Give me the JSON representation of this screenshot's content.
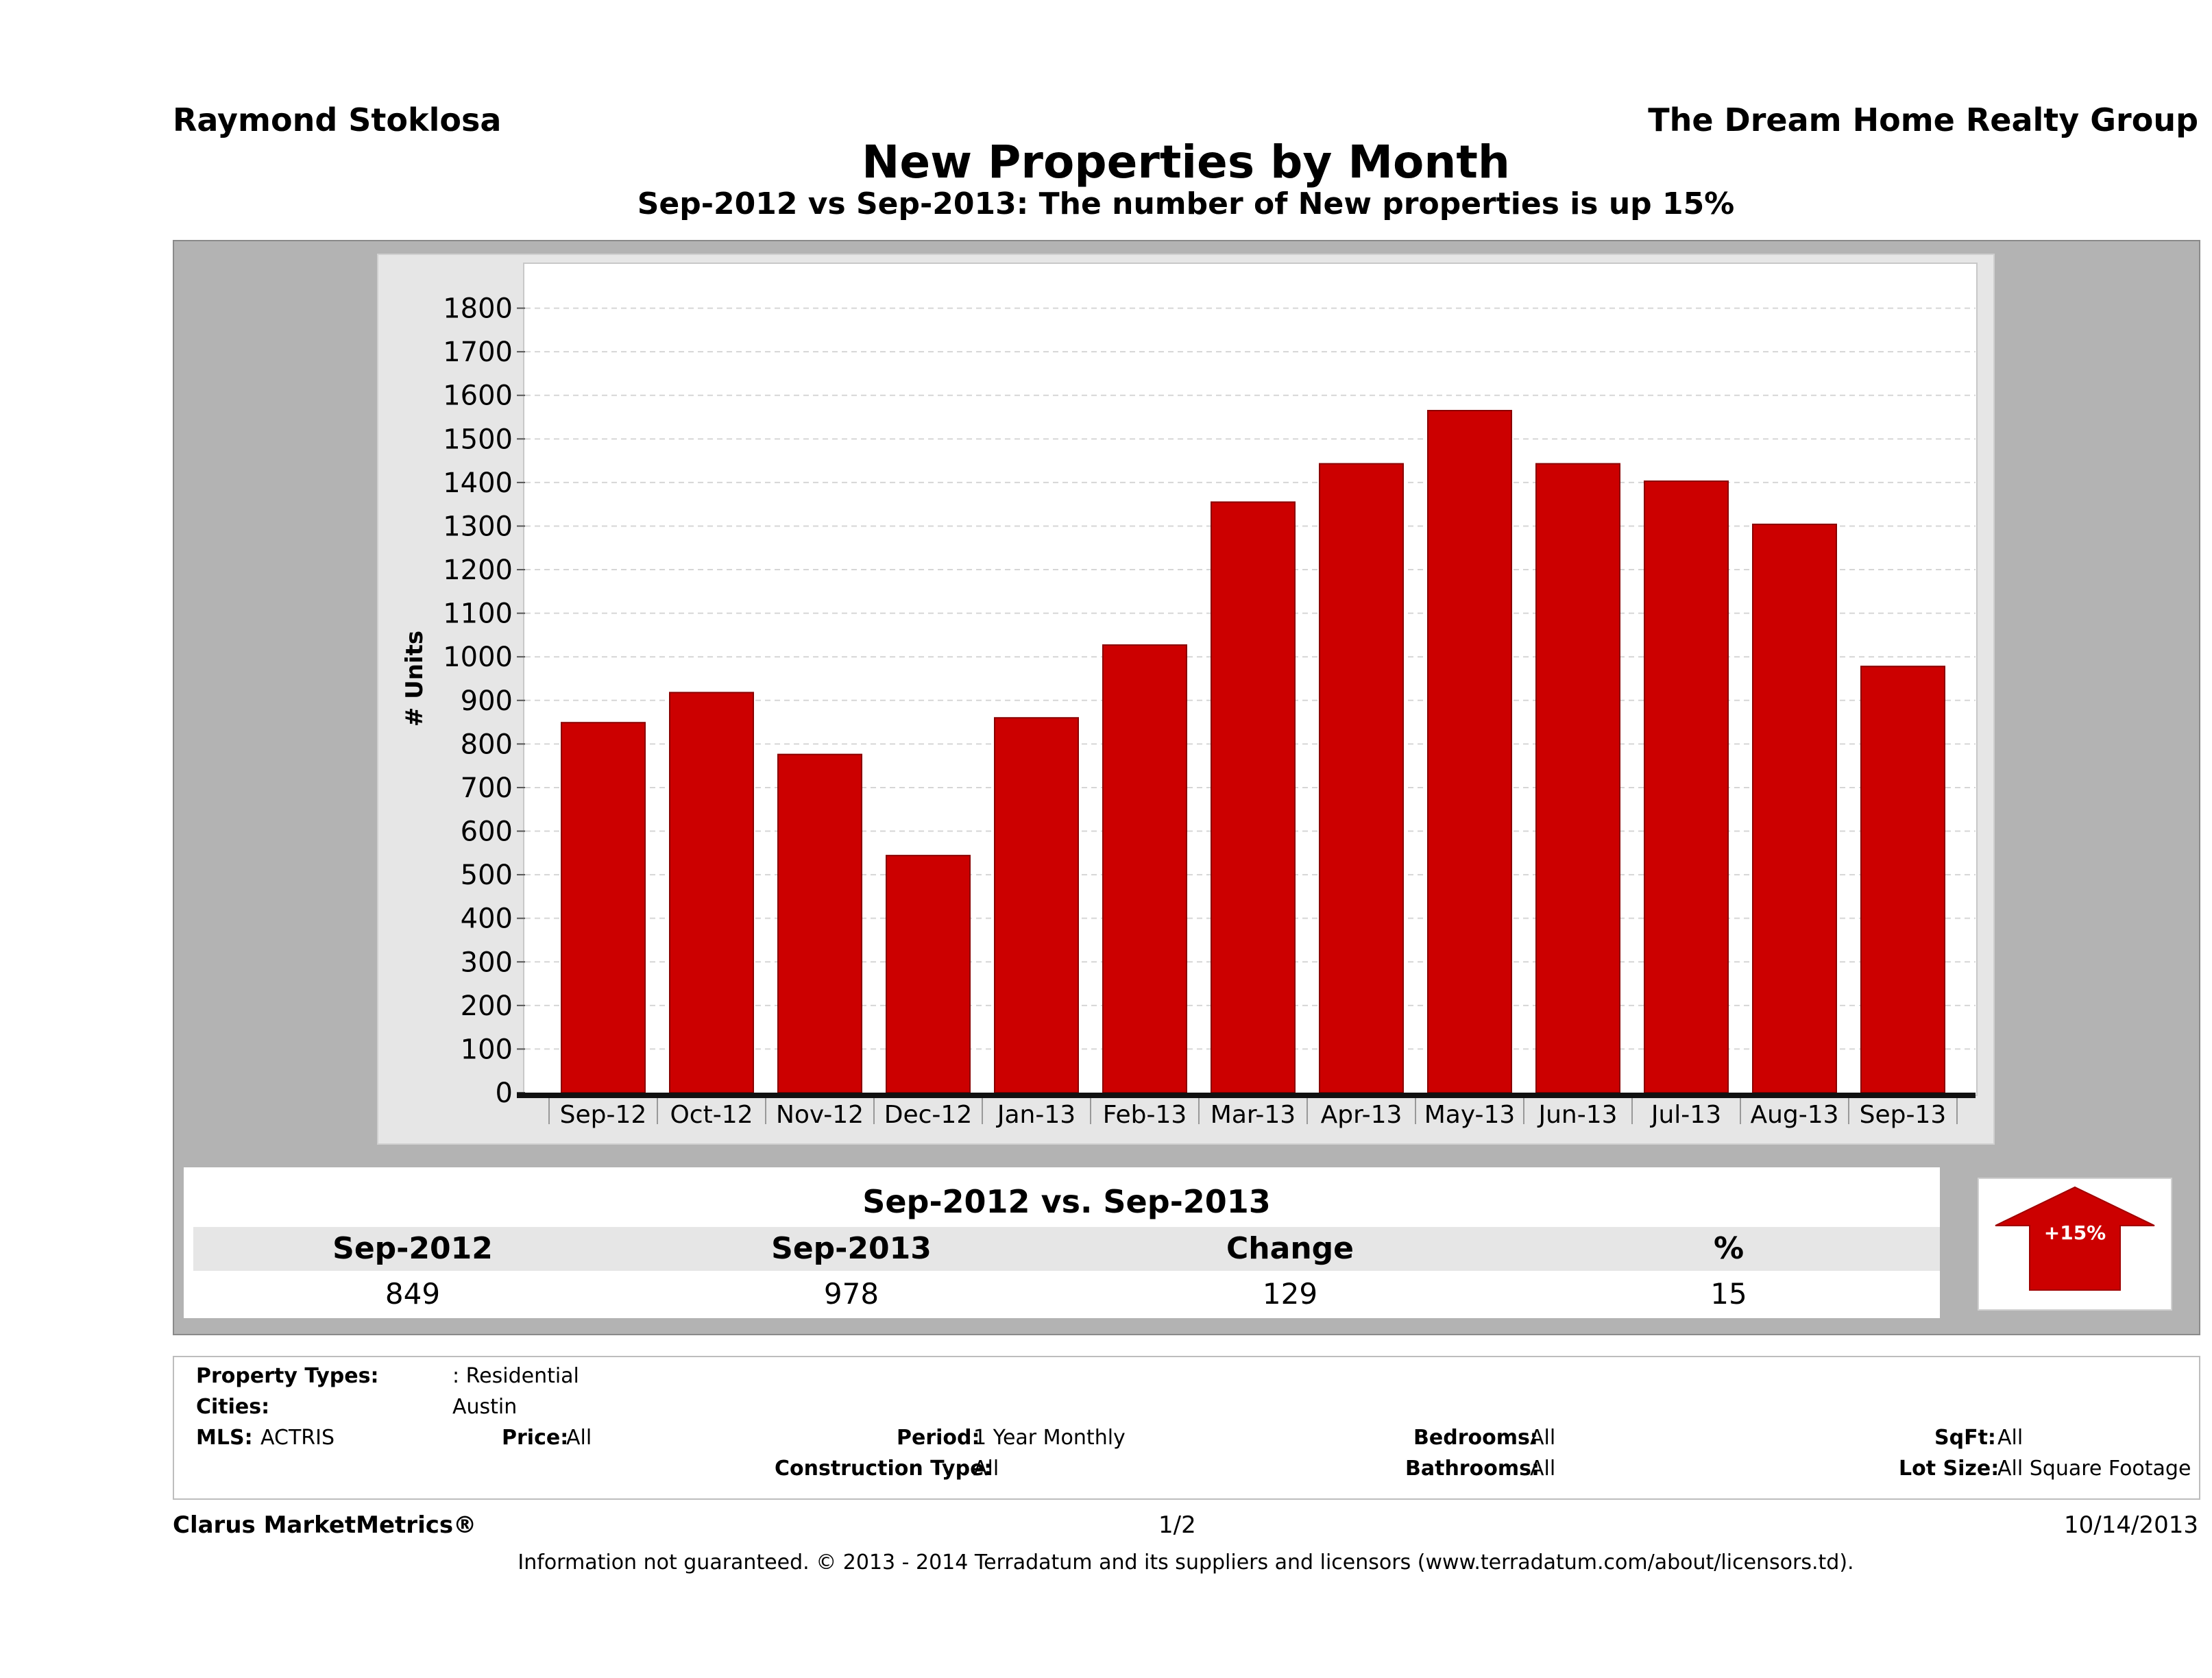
{
  "header": {
    "agent_name": "Raymond Stoklosa",
    "company": "The Dream Home Realty Group",
    "title": "New Properties by Month",
    "subtitle": "Sep-2012 vs Sep-2013: The number of New  properties is up 15%"
  },
  "chart_data": {
    "type": "bar",
    "title": "New Properties by Month",
    "ylabel": "# Units",
    "xlabel": "",
    "categories": [
      "Sep-12",
      "Oct-12",
      "Nov-12",
      "Dec-12",
      "Jan-13",
      "Feb-13",
      "Mar-13",
      "Apr-13",
      "May-13",
      "Jun-13",
      "Jul-13",
      "Aug-13",
      "Sep-13"
    ],
    "values": [
      849,
      918,
      776,
      544,
      860,
      1027,
      1355,
      1443,
      1565,
      1443,
      1403,
      1304,
      978
    ],
    "ylim": [
      0,
      1900
    ],
    "yticks": [
      0,
      100,
      200,
      300,
      400,
      500,
      600,
      700,
      800,
      900,
      1000,
      1100,
      1200,
      1300,
      1400,
      1500,
      1600,
      1700,
      1800
    ],
    "grid": true,
    "bar_color": "#cc0000"
  },
  "comparison": {
    "heading": "Sep-2012 vs. Sep-2013",
    "labels": [
      "Sep-2012",
      "Sep-2013",
      "Change",
      "%"
    ],
    "values": [
      "849",
      "978",
      "129",
      "15"
    ],
    "badge": "+15%",
    "badge_color": "#cc0000"
  },
  "filters": {
    "property_types_label": "Property Types:",
    "property_types_value": ": Residential",
    "cities_label": "Cities:",
    "cities_value": "Austin",
    "mls_label": "MLS:",
    "mls_value": "ACTRIS",
    "price_label": "Price:",
    "price_value": "All",
    "period_label": "Period:",
    "period_value": "1 Year Monthly",
    "construction_label": "Construction Type:",
    "construction_value": "All",
    "bedrooms_label": "Bedrooms:",
    "bedrooms_value": "All",
    "bathrooms_label": "Bathrooms:",
    "bathrooms_value": "All",
    "sqft_label": "SqFt:",
    "sqft_value": "All",
    "lotsize_label": "Lot Size:",
    "lotsize_value": "All Square Footage"
  },
  "footer": {
    "brand": "Clarus MarketMetrics®",
    "page": "1/2",
    "date": "10/14/2013",
    "disclaimer": "Information not guaranteed. © 2013 - 2014 Terradatum and its suppliers and licensors (www.terradatum.com/about/licensors.td)."
  }
}
